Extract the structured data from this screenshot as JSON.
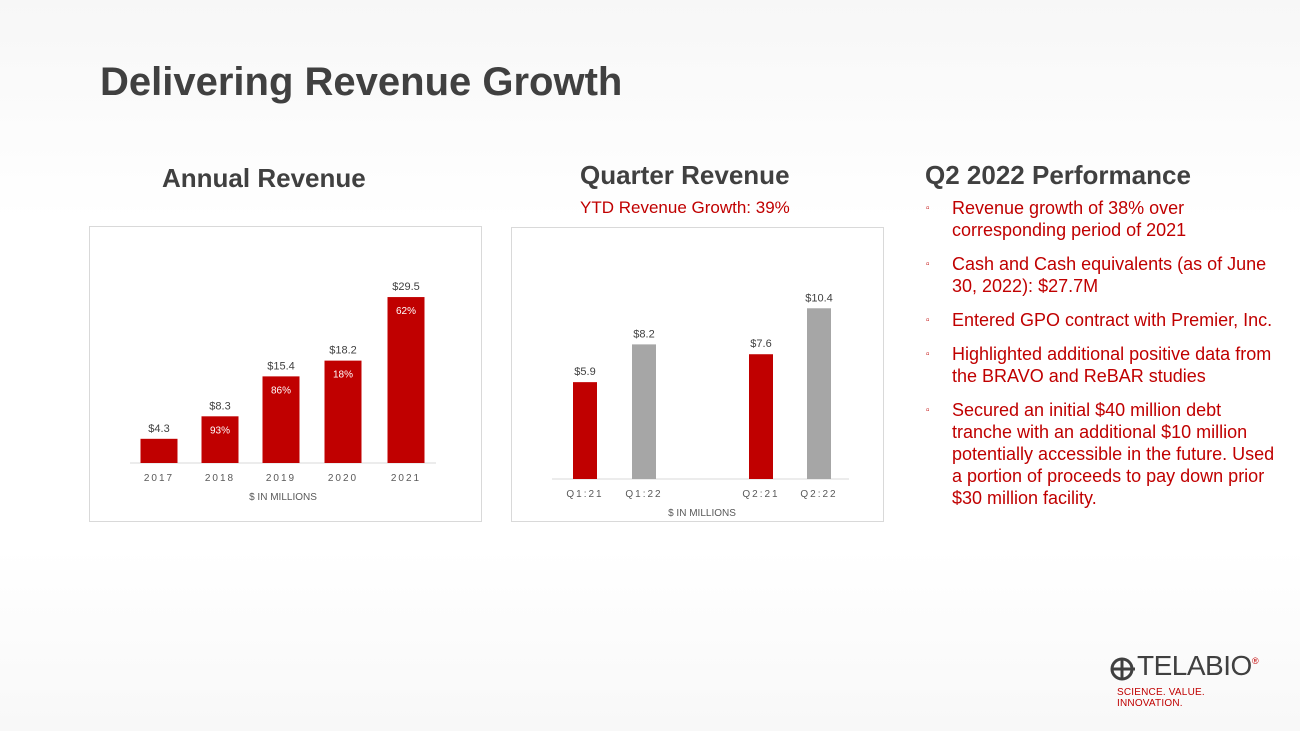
{
  "title": "Delivering Revenue Growth",
  "annual": {
    "heading": "Annual Revenue"
  },
  "quarter": {
    "heading": "Quarter Revenue",
    "subtitle": "YTD Revenue Growth: 39%"
  },
  "performance": {
    "heading": "Q2 2022 Performance",
    "bullets": [
      "Revenue growth of 38% over corresponding period of 2021",
      "Cash and Cash equivalents (as of June 30, 2022): $27.7M",
      "Entered GPO contract with Premier, Inc.",
      "Highlighted additional positive data from the BRAVO and ReBAR studies",
      "Secured an initial $40 million debt tranche with an additional $10 million potentially accessible in the future. Used a portion of proceeds to pay down prior $30 million facility."
    ]
  },
  "logo": {
    "brand": "TELABIO",
    "reg": "®",
    "tagline": "SCIENCE. VALUE. INNOVATION."
  },
  "colors": {
    "red": "#c00000",
    "gray": "#a6a6a6",
    "text": "#404040"
  },
  "chart_data": [
    {
      "type": "bar",
      "title": "Annual Revenue",
      "categories": [
        "2017",
        "2018",
        "2019",
        "2020",
        "2021"
      ],
      "values": [
        4.3,
        8.3,
        15.4,
        18.2,
        29.5
      ],
      "data_labels": [
        "$4.3",
        "$8.3",
        "$15.4",
        "$18.2",
        "$29.5"
      ],
      "growth_labels": [
        "",
        "93%",
        "86%",
        "18%",
        "62%"
      ],
      "xlabel": "$ IN MILLIONS",
      "ylabel": "",
      "ylim": [
        0,
        32
      ],
      "grid": false
    },
    {
      "type": "bar",
      "title": "Quarter Revenue",
      "categories": [
        "Q1:21",
        "Q1:22",
        "Q2:21",
        "Q2:22"
      ],
      "values": [
        5.9,
        8.2,
        7.6,
        10.4
      ],
      "data_labels": [
        "$5.9",
        "$8.2",
        "$7.6",
        "$10.4"
      ],
      "bar_colors": [
        "#c00000",
        "#a6a6a6",
        "#c00000",
        "#a6a6a6"
      ],
      "xlabel": "$ IN MILLIONS",
      "ylabel": "",
      "ylim": [
        0,
        12
      ],
      "grid": false
    }
  ]
}
